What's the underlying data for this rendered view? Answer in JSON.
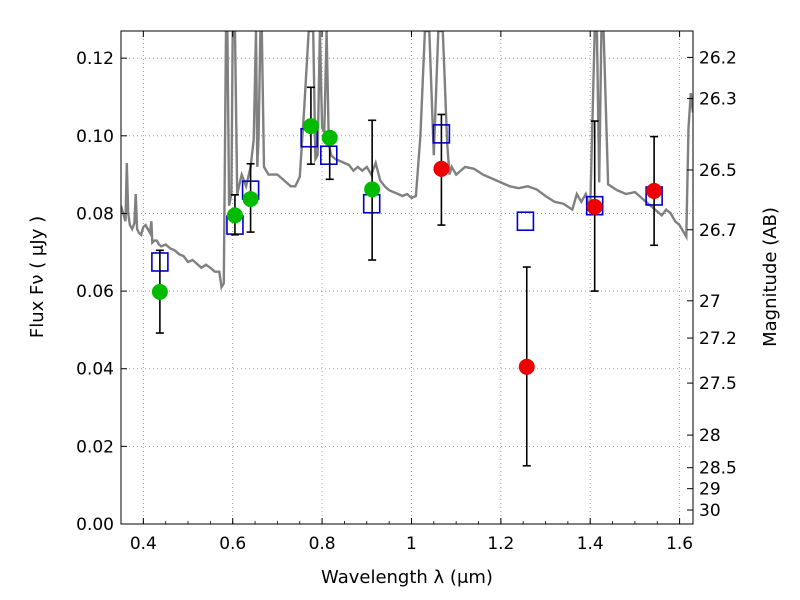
{
  "chart_data": {
    "type": "scatter",
    "xlabel": "Wavelength  λ (μm)",
    "ylabel": "Flux  Fν  ( μJy )",
    "y2label": "Magnitude (AB)",
    "xlim": [
      0.35,
      1.63
    ],
    "ylim": [
      0.0,
      0.127
    ],
    "grid": true,
    "x_ticks": [
      0.4,
      0.6,
      0.8,
      1.0,
      1.2,
      1.4,
      1.6
    ],
    "x_tick_labels": [
      "0.4",
      "0.6",
      "0.8",
      "1",
      "1.2",
      "1.4",
      "1.6"
    ],
    "y_ticks": [
      0.0,
      0.02,
      0.04,
      0.06,
      0.08,
      0.1,
      0.12
    ],
    "y_tick_labels": [
      "0.00",
      "0.02",
      "0.04",
      "0.06",
      "0.08",
      "0.10",
      "0.12"
    ],
    "y2_ticks": [
      {
        "label": "26.2",
        "flux": 0.1202
      },
      {
        "label": "26.3",
        "flux": 0.1096
      },
      {
        "label": "26.5",
        "flux": 0.0912
      },
      {
        "label": "26.7",
        "flux": 0.0758
      },
      {
        "label": "27",
        "flux": 0.0575
      },
      {
        "label": "27.2",
        "flux": 0.0479
      },
      {
        "label": "27.5",
        "flux": 0.0363
      },
      {
        "label": "28",
        "flux": 0.0229
      },
      {
        "label": "28.5",
        "flux": 0.0145
      },
      {
        "label": "29",
        "flux": 0.0091
      },
      {
        "label": "30",
        "flux": 0.0036
      }
    ],
    "colors": {
      "model_line": "#808080",
      "model_points": "#0000cc",
      "green_points": "#00bb00",
      "red_points": "#ee0000",
      "errorbars": "#000000"
    },
    "series": [
      {
        "style": "line",
        "x": [
          0.35,
          0.355,
          0.36,
          0.363,
          0.366,
          0.37,
          0.375,
          0.38,
          0.383,
          0.386,
          0.39,
          0.395,
          0.4,
          0.405,
          0.41,
          0.415,
          0.418,
          0.42,
          0.425,
          0.43,
          0.435,
          0.44,
          0.45,
          0.46,
          0.47,
          0.48,
          0.49,
          0.5,
          0.51,
          0.52,
          0.53,
          0.54,
          0.55,
          0.56,
          0.57,
          0.575,
          0.58,
          0.585,
          0.588,
          0.592,
          0.597,
          0.6,
          0.605,
          0.61,
          0.62,
          0.63,
          0.64,
          0.647,
          0.652,
          0.655,
          0.658,
          0.662,
          0.665,
          0.67,
          0.68,
          0.69,
          0.7,
          0.71,
          0.72,
          0.73,
          0.74,
          0.75,
          0.76,
          0.77,
          0.78,
          0.785,
          0.79,
          0.795,
          0.8,
          0.805,
          0.81,
          0.815,
          0.82,
          0.83,
          0.84,
          0.85,
          0.86,
          0.87,
          0.88,
          0.89,
          0.9,
          0.91,
          0.92,
          0.93,
          0.94,
          0.95,
          0.96,
          0.97,
          0.98,
          0.99,
          1.0,
          1.01,
          1.02,
          1.03,
          1.04,
          1.05,
          1.06,
          1.07,
          1.08,
          1.085,
          1.09,
          1.1,
          1.12,
          1.14,
          1.16,
          1.18,
          1.2,
          1.22,
          1.24,
          1.26,
          1.28,
          1.3,
          1.32,
          1.34,
          1.36,
          1.37,
          1.38,
          1.39,
          1.4,
          1.41,
          1.415,
          1.42,
          1.425,
          1.43,
          1.44,
          1.46,
          1.48,
          1.5,
          1.52,
          1.54,
          1.56,
          1.57,
          1.58,
          1.59,
          1.6,
          1.605,
          1.61,
          1.615,
          1.62,
          1.625,
          1.63
        ],
        "values": [
          0.082,
          0.08,
          0.078,
          0.093,
          0.08,
          0.077,
          0.076,
          0.0775,
          0.085,
          0.076,
          0.075,
          0.0745,
          0.0765,
          0.077,
          0.076,
          0.075,
          0.078,
          0.0725,
          0.073,
          0.073,
          0.072,
          0.0715,
          0.072,
          0.071,
          0.0705,
          0.0695,
          0.069,
          0.0675,
          0.068,
          0.067,
          0.066,
          0.0668,
          0.066,
          0.065,
          0.065,
          0.061,
          0.062,
          0.127,
          0.127,
          0.082,
          0.085,
          0.127,
          0.127,
          0.085,
          0.09,
          0.087,
          0.092,
          0.099,
          0.127,
          0.092,
          0.1,
          0.127,
          0.127,
          0.092,
          0.09,
          0.09,
          0.09,
          0.089,
          0.088,
          0.087,
          0.087,
          0.0895,
          0.107,
          0.127,
          0.127,
          0.094,
          0.095,
          0.127,
          0.102,
          0.101,
          0.127,
          0.098,
          0.095,
          0.094,
          0.0935,
          0.093,
          0.0925,
          0.091,
          0.092,
          0.091,
          0.092,
          0.09,
          0.093,
          0.0885,
          0.087,
          0.086,
          0.0855,
          0.085,
          0.0845,
          0.085,
          0.084,
          0.0845,
          0.1,
          0.127,
          0.127,
          0.095,
          0.127,
          0.127,
          0.098,
          0.09,
          0.092,
          0.09,
          0.092,
          0.0915,
          0.09,
          0.089,
          0.088,
          0.087,
          0.0865,
          0.087,
          0.0862,
          0.0845,
          0.083,
          0.0825,
          0.081,
          0.085,
          0.083,
          0.085,
          0.081,
          0.127,
          0.127,
          0.088,
          0.127,
          0.127,
          0.0875,
          0.086,
          0.085,
          0.0855,
          0.0835,
          0.0815,
          0.0795,
          0.081,
          0.08,
          0.078,
          0.077,
          0.076,
          0.075,
          0.074,
          0.102,
          0.111,
          0.106
        ]
      },
      {
        "style": "open-square",
        "x": [
          0.437,
          0.605,
          0.64,
          0.771,
          0.815,
          0.911,
          1.067,
          1.255,
          1.41,
          1.543
        ],
        "values": [
          0.0675,
          0.077,
          0.086,
          0.0995,
          0.095,
          0.0825,
          0.1005,
          0.078,
          0.082,
          0.0845
        ]
      },
      {
        "style": "filled-circle",
        "x": [
          0.437,
          0.605,
          0.64,
          0.775,
          0.817,
          0.912
        ],
        "values": [
          0.0598,
          0.0795,
          0.0837,
          0.1025,
          0.0995,
          0.0862
        ],
        "err_low": [
          0.0492,
          0.0745,
          0.0752,
          0.0927,
          0.0888,
          0.068
        ],
        "err_high": [
          0.0705,
          0.0848,
          0.0928,
          0.1125,
          0.1005,
          0.104
        ]
      },
      {
        "style": "filled-circle-red",
        "x": [
          1.067,
          1.258,
          1.41,
          1.543
        ],
        "values": [
          0.0915,
          0.0405,
          0.0817,
          0.0858
        ],
        "err_low": [
          0.077,
          0.015,
          0.06,
          0.0718
        ],
        "err_high": [
          0.1055,
          0.0662,
          0.1038,
          0.0998
        ]
      }
    ]
  }
}
